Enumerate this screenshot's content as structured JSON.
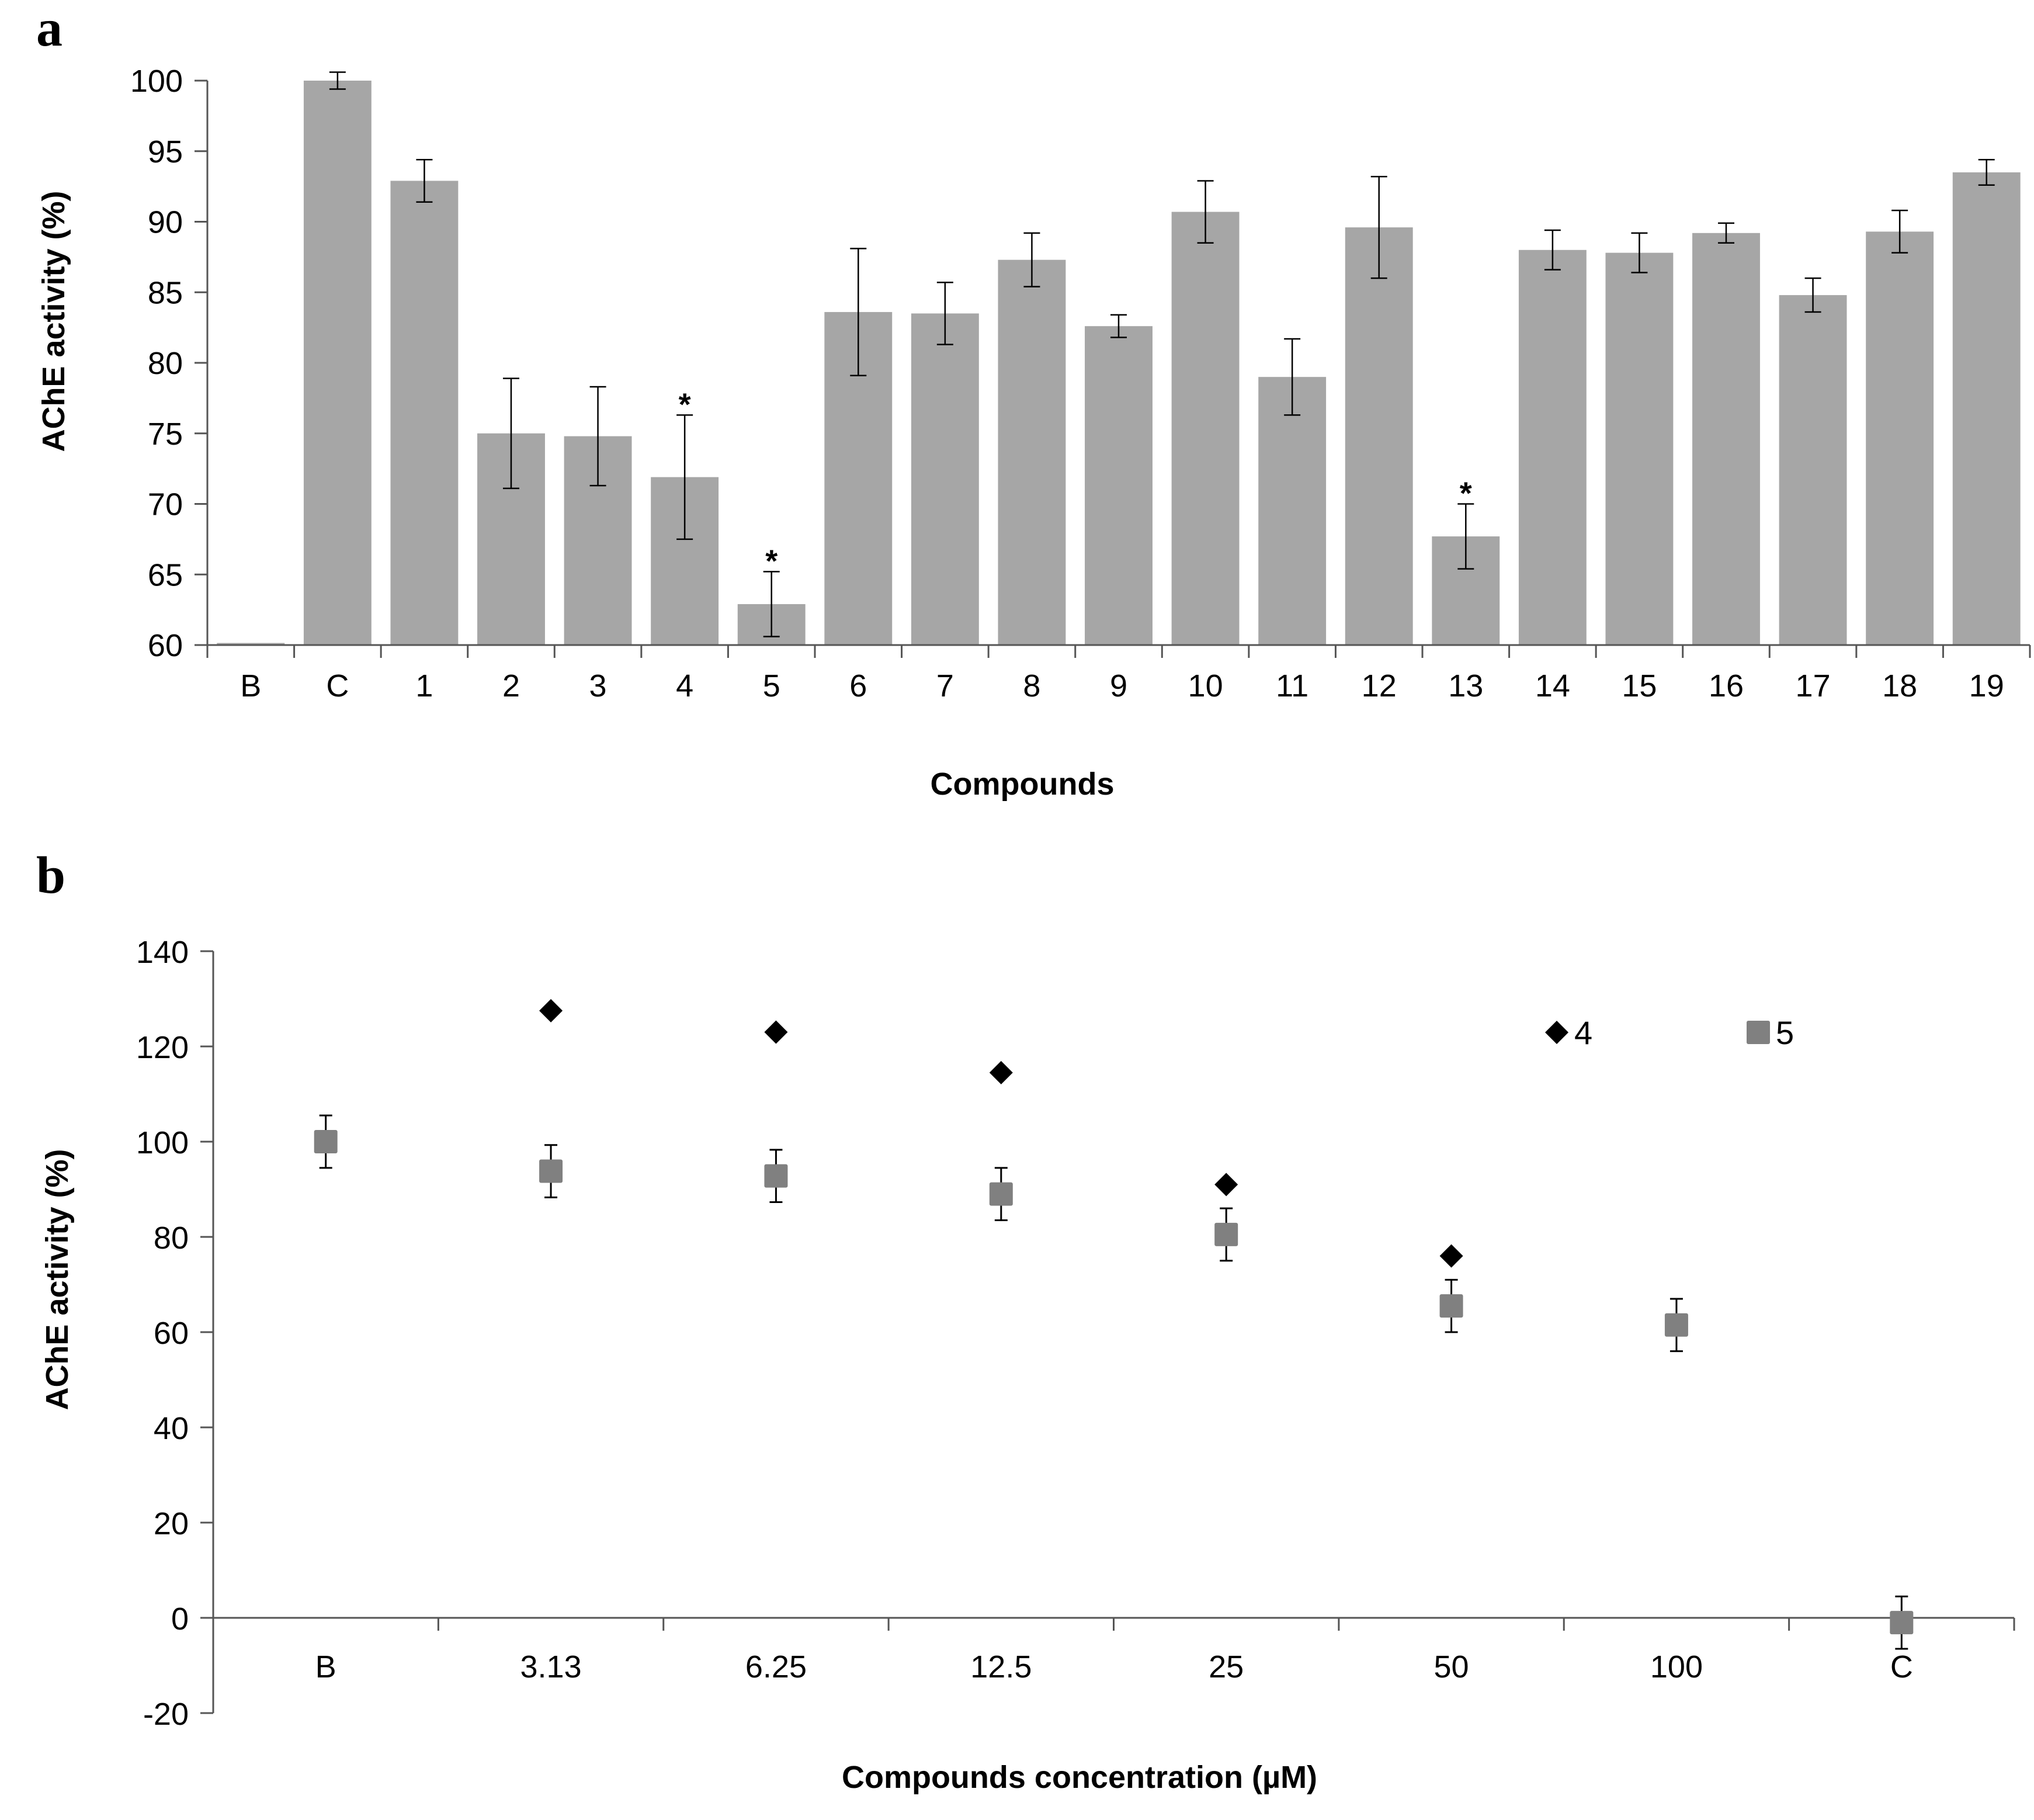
{
  "chart_data": [
    {
      "panel": "a",
      "type": "bar",
      "xlabel": "Compounds",
      "ylabel": "AChE activity (%)",
      "ylim": [
        60,
        100
      ],
      "yticks": [
        60,
        65,
        70,
        75,
        80,
        85,
        90,
        95,
        100
      ],
      "grid": false,
      "bar_color": "#a6a6a6",
      "categories": [
        "B",
        "C",
        "1",
        "2",
        "3",
        "4",
        "5",
        "6",
        "7",
        "8",
        "9",
        "10",
        "11",
        "12",
        "13",
        "14",
        "15",
        "16",
        "17",
        "18",
        "19"
      ],
      "values": [
        60,
        100,
        92.9,
        75.0,
        74.8,
        71.9,
        62.9,
        83.6,
        83.5,
        87.3,
        82.6,
        90.7,
        79.0,
        89.6,
        67.7,
        88.0,
        87.8,
        89.2,
        84.8,
        89.3,
        93.5
      ],
      "errors": [
        0,
        0.6,
        1.5,
        3.9,
        3.5,
        4.4,
        2.3,
        4.5,
        2.2,
        1.9,
        0.8,
        2.2,
        2.7,
        3.6,
        2.3,
        1.4,
        1.4,
        0.7,
        1.2,
        1.5,
        0.9
      ],
      "significant": [
        "4",
        "5",
        "13"
      ],
      "significance_marker": "*"
    },
    {
      "panel": "b",
      "type": "scatter",
      "xlabel": "Compounds concentration (µM)",
      "ylabel": "AChE activity (%)",
      "ylim": [
        -20,
        140
      ],
      "yticks": [
        -20,
        0,
        20,
        40,
        60,
        80,
        100,
        120,
        140
      ],
      "grid": false,
      "legend_position": "top-right",
      "categories": [
        "B",
        "3.13",
        "6.25",
        "12.5",
        "25",
        "50",
        "100",
        "C"
      ],
      "series": [
        {
          "name": "4",
          "marker": "diamond",
          "color": "#000000",
          "values": [
            null,
            127.5,
            123,
            114.5,
            91,
            76,
            null,
            null
          ],
          "errors": [
            null,
            null,
            null,
            null,
            null,
            null,
            null,
            null
          ]
        },
        {
          "name": "5",
          "marker": "square",
          "color": "#808080",
          "values": [
            100,
            93.8,
            92.8,
            89,
            80.5,
            65.5,
            61.5,
            -1
          ],
          "errors": [
            5.5,
            5.5,
            5.5,
            5.5,
            5.5,
            5.5,
            5.5,
            5.5
          ]
        }
      ]
    }
  ]
}
